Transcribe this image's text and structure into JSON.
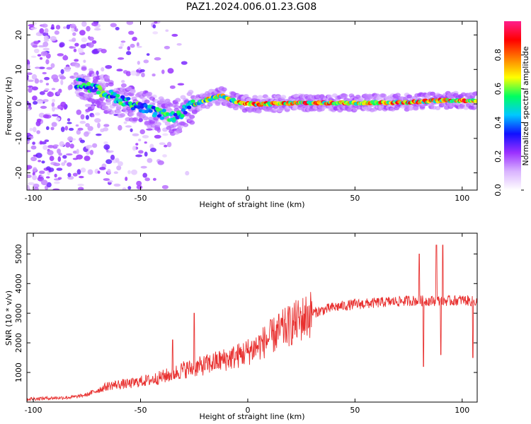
{
  "title": "PAZ1.2024.006.01.23.G08",
  "chart_data": [
    {
      "type": "heatmap",
      "xlabel": "Height of straight line (km)",
      "ylabel": "Frequency (Hz)",
      "xlim": [
        -103,
        107
      ],
      "ylim": [
        -25,
        24
      ],
      "xticks": [
        "-100",
        "-50",
        "0",
        "50",
        "100"
      ],
      "yticks": [
        "-20",
        "-10",
        "0",
        "10",
        "20"
      ],
      "colorbar": {
        "label": "Normalized spectral amplitude",
        "range": [
          0,
          1
        ],
        "ticks": [
          "0.0",
          "0.2",
          "0.4",
          "0.6",
          "0.8"
        ],
        "colors": [
          "#ffffff",
          "#d9b3ff",
          "#9b30ff",
          "#1010ff",
          "#00c8ff",
          "#00ff60",
          "#ffff00",
          "#ff8000",
          "#ff0000",
          "#ff1e8c"
        ]
      },
      "ridge": {
        "x": [
          -78,
          -70,
          -60,
          -50,
          -40,
          -33,
          -28,
          -20,
          -12,
          -5,
          0,
          10,
          25,
          50,
          75,
          90,
          107
        ],
        "y": [
          6,
          4,
          1.5,
          -1,
          -3,
          -4,
          -1,
          1,
          2.5,
          0.5,
          0,
          0,
          0.3,
          0.3,
          0.5,
          1,
          1
        ]
      },
      "grid": false
    },
    {
      "type": "line",
      "xlabel": "Height of straight line (km)",
      "ylabel": "SNR (10 * v/v)",
      "xlim": [
        -103,
        107
      ],
      "ylim": [
        0,
        5700
      ],
      "xticks": [
        "-100",
        "-50",
        "0",
        "50",
        "100"
      ],
      "yticks": [
        "1000",
        "2000",
        "3000",
        "4000",
        "5000"
      ],
      "color": "#e8302f",
      "x": [
        -103,
        -95,
        -90,
        -85,
        -80,
        -75,
        -70,
        -65,
        -60,
        -55,
        -50,
        -45,
        -40,
        -35,
        -30,
        -25,
        -20,
        -15,
        -10,
        -5,
        0,
        5,
        10,
        15,
        20,
        25,
        30,
        35,
        40,
        45,
        50,
        55,
        60,
        65,
        70,
        75,
        80,
        85,
        90,
        95,
        100,
        105,
        107
      ],
      "y": [
        100,
        130,
        140,
        150,
        180,
        250,
        400,
        550,
        600,
        620,
        700,
        750,
        850,
        950,
        1100,
        1150,
        1250,
        1350,
        1450,
        1550,
        1700,
        1900,
        2150,
        2400,
        2600,
        2800,
        3000,
        3100,
        3200,
        3250,
        3300,
        3320,
        3350,
        3380,
        3400,
        3420,
        3420,
        3420,
        3420,
        3420,
        3450,
        3400,
        3400
      ],
      "spikes": [
        [
          -25,
          3000
        ],
        [
          -35,
          2100
        ],
        [
          80,
          5000
        ],
        [
          82,
          1200
        ],
        [
          88,
          5300
        ],
        [
          90,
          1600
        ],
        [
          91,
          5300
        ],
        [
          105,
          1500
        ]
      ],
      "grid": false
    }
  ]
}
